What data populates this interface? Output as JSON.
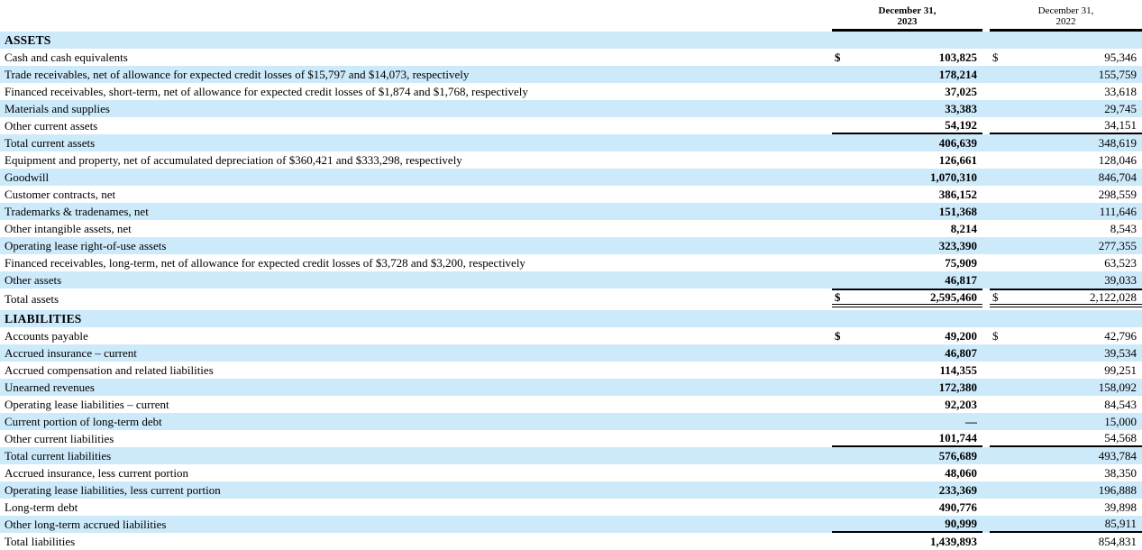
{
  "colors": {
    "row_highlight": "#cdeafb",
    "rule": "#000000",
    "text": "#000000"
  },
  "header": {
    "col1_line1": "December 31,",
    "col1_line2": "2023",
    "col2_line1": "December 31,",
    "col2_line2": "2022"
  },
  "table": {
    "rows": [
      {
        "label": "ASSETS",
        "type": "section",
        "shaded": true
      },
      {
        "label": "Cash and cash equivalents",
        "v2023": "103,825",
        "v2022": "95,346",
        "dollar": true,
        "shaded": false
      },
      {
        "label": "Trade receivables, net of allowance for expected credit losses of $15,797 and $14,073, respectively",
        "v2023": "178,214",
        "v2022": "155,759",
        "shaded": true
      },
      {
        "label": "Financed receivables, short-term, net of allowance for expected credit losses of $1,874 and $1,768, respectively",
        "v2023": "37,025",
        "v2022": "33,618",
        "shaded": false
      },
      {
        "label": "Materials and supplies",
        "v2023": "33,383",
        "v2022": "29,745",
        "shaded": true
      },
      {
        "label": "Other current assets",
        "v2023": "54,192",
        "v2022": "34,151",
        "shaded": false,
        "rule": "bottom"
      },
      {
        "label": "Total current assets",
        "v2023": "406,639",
        "v2022": "348,619",
        "shaded": true
      },
      {
        "label": "Equipment and property, net of accumulated depreciation of $360,421 and $333,298, respectively",
        "v2023": "126,661",
        "v2022": "128,046",
        "shaded": false
      },
      {
        "label": "Goodwill",
        "v2023": "1,070,310",
        "v2022": "846,704",
        "shaded": true
      },
      {
        "label": "Customer contracts, net",
        "v2023": "386,152",
        "v2022": "298,559",
        "shaded": false
      },
      {
        "label": "Trademarks & tradenames, net",
        "v2023": "151,368",
        "v2022": "111,646",
        "shaded": true
      },
      {
        "label": "Other intangible assets, net",
        "v2023": "8,214",
        "v2022": "8,543",
        "shaded": false
      },
      {
        "label": "Operating lease right-of-use assets",
        "v2023": "323,390",
        "v2022": "277,355",
        "shaded": true
      },
      {
        "label": "Financed receivables, long-term, net of allowance for expected credit losses of $3,728 and $3,200, respectively",
        "v2023": "75,909",
        "v2022": "63,523",
        "shaded": false
      },
      {
        "label": "Other assets",
        "v2023": "46,817",
        "v2022": "39,033",
        "shaded": true
      },
      {
        "label": "Total assets",
        "v2023": "2,595,460",
        "v2022": "2,122,028",
        "dollar": true,
        "shaded": false,
        "rule": "total",
        "tall": true
      },
      {
        "label": "LIABILITIES",
        "type": "section",
        "shaded": true
      },
      {
        "label": "Accounts payable",
        "v2023": "49,200",
        "v2022": "42,796",
        "dollar": true,
        "shaded": false
      },
      {
        "label": "Accrued insurance – current",
        "v2023": "46,807",
        "v2022": "39,534",
        "shaded": true
      },
      {
        "label": "Accrued compensation and related liabilities",
        "v2023": "114,355",
        "v2022": "99,251",
        "shaded": false
      },
      {
        "label": "Unearned revenues",
        "v2023": "172,380",
        "v2022": "158,092",
        "shaded": true
      },
      {
        "label": "Operating lease liabilities – current",
        "v2023": "92,203",
        "v2022": "84,543",
        "shaded": false
      },
      {
        "label": "Current portion of long-term debt",
        "v2023": "—",
        "v2022": "15,000",
        "shaded": true
      },
      {
        "label": "Other current liabilities",
        "v2023": "101,744",
        "v2022": "54,568",
        "shaded": false,
        "rule": "bottom"
      },
      {
        "label": "Total current liabilities",
        "v2023": "576,689",
        "v2022": "493,784",
        "shaded": true
      },
      {
        "label": "Accrued insurance, less current portion",
        "v2023": "48,060",
        "v2022": "38,350",
        "shaded": false
      },
      {
        "label": "Operating lease liabilities, less current portion",
        "v2023": "233,369",
        "v2022": "196,888",
        "shaded": true
      },
      {
        "label": "Long-term debt",
        "v2023": "490,776",
        "v2022": "39,898",
        "shaded": false
      },
      {
        "label": "Other long-term accrued liabilities",
        "v2023": "90,999",
        "v2022": "85,911",
        "shaded": true,
        "rule": "bottom"
      },
      {
        "label": "Total liabilities",
        "v2023": "1,439,893",
        "v2022": "854,831",
        "shaded": false
      }
    ]
  }
}
